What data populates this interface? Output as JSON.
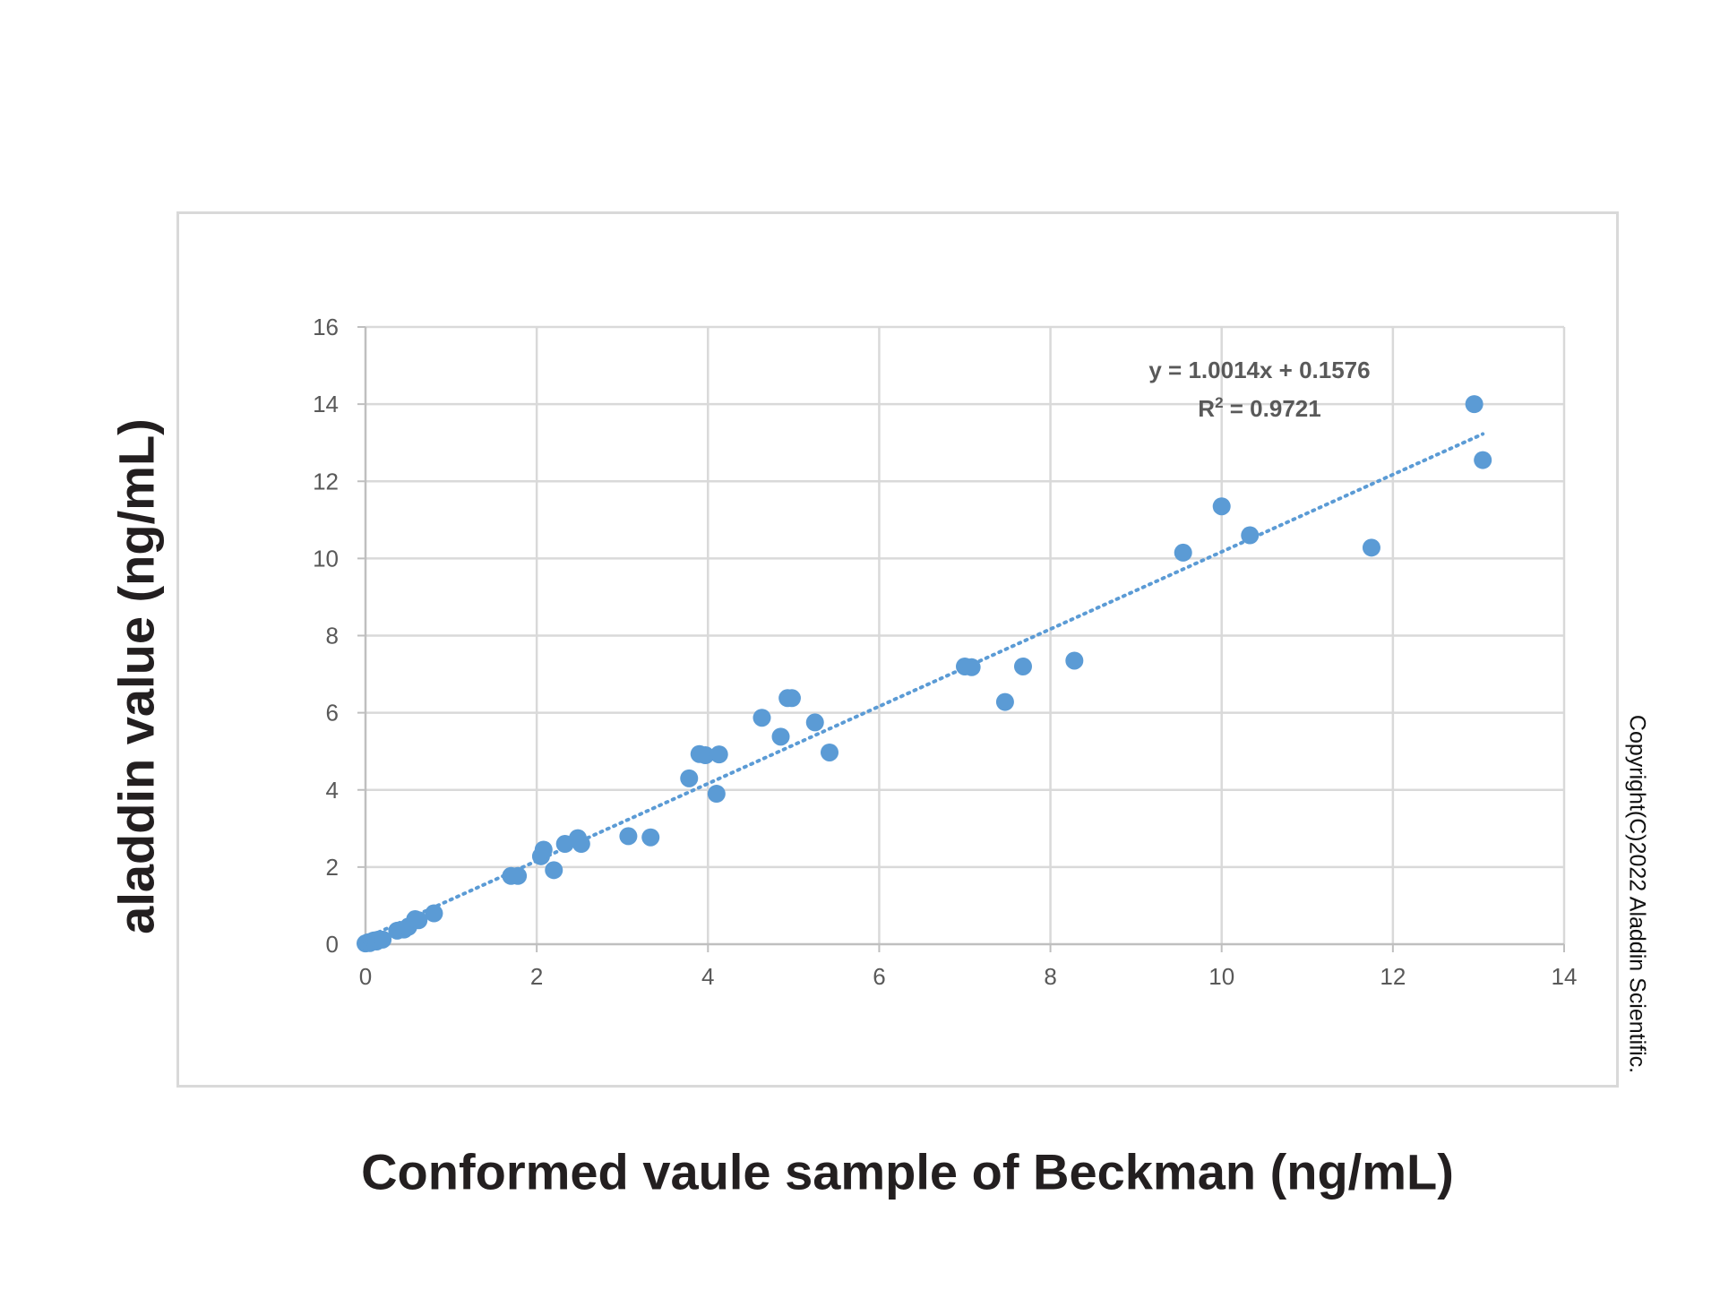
{
  "chart_data": {
    "type": "scatter",
    "xlabel": "Conformed vaule sample of Beckman (ng/mL)",
    "ylabel": "aladdin value (ng/mL)",
    "xlim": [
      0,
      14
    ],
    "ylim": [
      0,
      16
    ],
    "x_ticks": [
      0,
      2,
      4,
      6,
      8,
      10,
      12,
      14
    ],
    "y_ticks": [
      0,
      2,
      4,
      6,
      8,
      10,
      12,
      14,
      16
    ],
    "grid": true,
    "trendline": {
      "type": "linear",
      "style": "dotted",
      "slope": 1.0014,
      "intercept": 0.1576,
      "x_range": [
        0,
        13.05
      ],
      "equation_label": "y = 1.0014x + 0.1576",
      "r2_prefix": "R",
      "r2_sup": "2",
      "r2_value": " = 0.9721"
    },
    "series": [
      {
        "color": "#5b9bd5",
        "points": [
          [
            0.0,
            0.02
          ],
          [
            0.03,
            0.05
          ],
          [
            0.05,
            0.03
          ],
          [
            0.08,
            0.08
          ],
          [
            0.1,
            0.1
          ],
          [
            0.13,
            0.07
          ],
          [
            0.15,
            0.12
          ],
          [
            0.2,
            0.12
          ],
          [
            0.37,
            0.35
          ],
          [
            0.45,
            0.38
          ],
          [
            0.5,
            0.45
          ],
          [
            0.58,
            0.65
          ],
          [
            0.62,
            0.62
          ],
          [
            0.8,
            0.8
          ],
          [
            1.7,
            1.77
          ],
          [
            1.78,
            1.77
          ],
          [
            2.05,
            2.28
          ],
          [
            2.08,
            2.45
          ],
          [
            2.2,
            1.92
          ],
          [
            2.33,
            2.6
          ],
          [
            2.48,
            2.75
          ],
          [
            2.52,
            2.6
          ],
          [
            3.07,
            2.8
          ],
          [
            3.33,
            2.77
          ],
          [
            3.78,
            4.3
          ],
          [
            3.9,
            4.93
          ],
          [
            3.97,
            4.9
          ],
          [
            4.1,
            3.9
          ],
          [
            4.13,
            4.92
          ],
          [
            4.63,
            5.87
          ],
          [
            4.85,
            5.38
          ],
          [
            4.93,
            6.38
          ],
          [
            4.98,
            6.38
          ],
          [
            5.25,
            5.75
          ],
          [
            5.42,
            4.97
          ],
          [
            7.0,
            7.2
          ],
          [
            7.08,
            7.18
          ],
          [
            7.47,
            6.28
          ],
          [
            7.68,
            7.2
          ],
          [
            8.28,
            7.35
          ],
          [
            9.55,
            10.15
          ],
          [
            10.0,
            11.35
          ],
          [
            10.33,
            10.6
          ],
          [
            11.75,
            10.28
          ],
          [
            12.95,
            14.0
          ],
          [
            13.05,
            12.55
          ]
        ]
      }
    ]
  },
  "copyright": "Copyright(C)2022 Aladdin Scientific."
}
